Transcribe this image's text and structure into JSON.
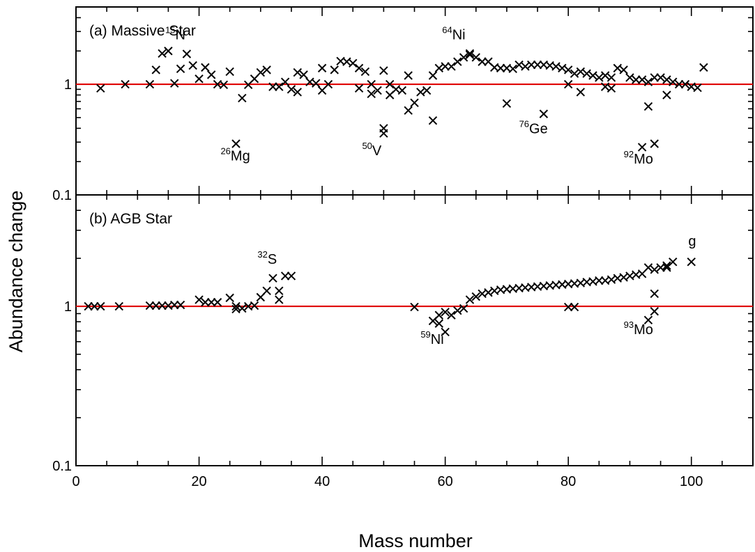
{
  "chart_data": {
    "type": "scatter",
    "xlabel": "Mass number",
    "ylabel": "Abundance change",
    "xlim": [
      0,
      110
    ],
    "x_ticks": [
      0,
      20,
      40,
      60,
      80,
      100
    ],
    "x_tick_labels": [
      "0",
      "20",
      "40",
      "60",
      "80",
      "100"
    ],
    "y_scale": "log",
    "reference_line": {
      "y": 1,
      "color": "#e00000"
    },
    "grid": false,
    "marker": "x",
    "panels": [
      {
        "title": "(a) Massive Star",
        "ylim": [
          0.1,
          5
        ],
        "y_tick_labels": [
          {
            "value": 0.1,
            "label": "0.1"
          },
          {
            "value": 1,
            "label": "1"
          }
        ],
        "points": [
          [
            4,
            0.92
          ],
          [
            8,
            1.0
          ],
          [
            12,
            1.0
          ],
          [
            13,
            1.35
          ],
          [
            14,
            1.9
          ],
          [
            15,
            2.0
          ],
          [
            16,
            1.02
          ],
          [
            17,
            1.38
          ],
          [
            18,
            1.88
          ],
          [
            19,
            1.48
          ],
          [
            20,
            1.12
          ],
          [
            21,
            1.42
          ],
          [
            22,
            1.22
          ],
          [
            23,
            1.0
          ],
          [
            24,
            0.99
          ],
          [
            25,
            1.3
          ],
          [
            26,
            0.29
          ],
          [
            27,
            0.75
          ],
          [
            28,
            0.99
          ],
          [
            29,
            1.12
          ],
          [
            30,
            1.28
          ],
          [
            31,
            1.35
          ],
          [
            32,
            0.95
          ],
          [
            33,
            0.95
          ],
          [
            34,
            1.05
          ],
          [
            35,
            0.9
          ],
          [
            36,
            0.85
          ],
          [
            36,
            1.28
          ],
          [
            37,
            1.22
          ],
          [
            38,
            1.05
          ],
          [
            39,
            1.02
          ],
          [
            40,
            0.88
          ],
          [
            40,
            1.4
          ],
          [
            41,
            1.0
          ],
          [
            42,
            1.35
          ],
          [
            43,
            1.62
          ],
          [
            44,
            1.6
          ],
          [
            45,
            1.55
          ],
          [
            46,
            0.92
          ],
          [
            46,
            1.4
          ],
          [
            47,
            1.3
          ],
          [
            48,
            1.0
          ],
          [
            48,
            0.82
          ],
          [
            49,
            0.88
          ],
          [
            50,
            1.33
          ],
          [
            50,
            0.4
          ],
          [
            50,
            0.36
          ],
          [
            51,
            1.0
          ],
          [
            51,
            0.8
          ],
          [
            52,
            0.9
          ],
          [
            53,
            0.88
          ],
          [
            54,
            1.2
          ],
          [
            54,
            0.58
          ],
          [
            55,
            0.68
          ],
          [
            56,
            0.85
          ],
          [
            57,
            0.88
          ],
          [
            58,
            0.47
          ],
          [
            58,
            1.2
          ],
          [
            59,
            1.4
          ],
          [
            60,
            1.45
          ],
          [
            61,
            1.45
          ],
          [
            62,
            1.6
          ],
          [
            63,
            1.75
          ],
          [
            64,
            1.85
          ],
          [
            64,
            1.9
          ],
          [
            65,
            1.75
          ],
          [
            66,
            1.6
          ],
          [
            67,
            1.6
          ],
          [
            68,
            1.42
          ],
          [
            69,
            1.4
          ],
          [
            70,
            1.4
          ],
          [
            70,
            0.67
          ],
          [
            71,
            1.38
          ],
          [
            72,
            1.5
          ],
          [
            73,
            1.45
          ],
          [
            74,
            1.5
          ],
          [
            75,
            1.5
          ],
          [
            76,
            1.5
          ],
          [
            76,
            0.54
          ],
          [
            77,
            1.48
          ],
          [
            78,
            1.45
          ],
          [
            79,
            1.4
          ],
          [
            80,
            1.35
          ],
          [
            80,
            1.0
          ],
          [
            81,
            1.25
          ],
          [
            82,
            1.3
          ],
          [
            82,
            0.85
          ],
          [
            83,
            1.25
          ],
          [
            84,
            1.2
          ],
          [
            85,
            1.15
          ],
          [
            86,
            1.2
          ],
          [
            86,
            0.95
          ],
          [
            87,
            1.15
          ],
          [
            87,
            0.92
          ],
          [
            88,
            1.4
          ],
          [
            89,
            1.35
          ],
          [
            90,
            1.15
          ],
          [
            91,
            1.1
          ],
          [
            92,
            1.1
          ],
          [
            92,
            0.27
          ],
          [
            93,
            1.05
          ],
          [
            93,
            0.63
          ],
          [
            94,
            1.15
          ],
          [
            94,
            0.29
          ],
          [
            95,
            1.15
          ],
          [
            96,
            1.1
          ],
          [
            96,
            0.8
          ],
          [
            97,
            1.05
          ],
          [
            98,
            1.0
          ],
          [
            99,
            1.0
          ],
          [
            100,
            0.95
          ],
          [
            101,
            0.93
          ],
          [
            102,
            1.42
          ]
        ],
        "annotations": [
          {
            "mass": "15",
            "element": "N",
            "x": 14.5,
            "y": 2.55
          },
          {
            "mass": "64",
            "element": "Ni",
            "x": 59.5,
            "y": 2.55
          },
          {
            "mass": "26",
            "element": "Mg",
            "x": 23.5,
            "y": 0.205
          },
          {
            "mass": "50",
            "element": "V",
            "x": 46.5,
            "y": 0.228
          },
          {
            "mass": "76",
            "element": "Ge",
            "x": 72.0,
            "y": 0.36
          },
          {
            "mass": "92",
            "element": "Mo",
            "x": 89.0,
            "y": 0.192
          }
        ]
      },
      {
        "title": "(b) AGB Star",
        "ylim": [
          0.1,
          5
        ],
        "y_tick_labels": [
          {
            "value": 0.1,
            "label": "0.1"
          },
          {
            "value": 1,
            "label": "1"
          }
        ],
        "points": [
          [
            2,
            1.0
          ],
          [
            3,
            1.0
          ],
          [
            4,
            1.0
          ],
          [
            7,
            1.0
          ],
          [
            12,
            1.01
          ],
          [
            13,
            1.01
          ],
          [
            14,
            1.01
          ],
          [
            15,
            1.01
          ],
          [
            16,
            1.02
          ],
          [
            17,
            1.02
          ],
          [
            20,
            1.1
          ],
          [
            21,
            1.06
          ],
          [
            22,
            1.06
          ],
          [
            23,
            1.06
          ],
          [
            25,
            1.13
          ],
          [
            26,
            1.0
          ],
          [
            26,
            0.96
          ],
          [
            27,
            0.97
          ],
          [
            28,
            1.0
          ],
          [
            29,
            1.01
          ],
          [
            30,
            1.14
          ],
          [
            31,
            1.25
          ],
          [
            32,
            1.5
          ],
          [
            33,
            1.25
          ],
          [
            33,
            1.1
          ],
          [
            34,
            1.55
          ],
          [
            35,
            1.55
          ],
          [
            55,
            0.99
          ],
          [
            58,
            0.81
          ],
          [
            59,
            0.78
          ],
          [
            59,
            0.88
          ],
          [
            60,
            0.92
          ],
          [
            60,
            0.69
          ],
          [
            61,
            0.88
          ],
          [
            62,
            0.94
          ],
          [
            63,
            0.97
          ],
          [
            64,
            1.1
          ],
          [
            65,
            1.15
          ],
          [
            66,
            1.2
          ],
          [
            67,
            1.22
          ],
          [
            68,
            1.25
          ],
          [
            69,
            1.27
          ],
          [
            70,
            1.28
          ],
          [
            71,
            1.29
          ],
          [
            72,
            1.3
          ],
          [
            73,
            1.31
          ],
          [
            74,
            1.32
          ],
          [
            75,
            1.33
          ],
          [
            76,
            1.34
          ],
          [
            77,
            1.35
          ],
          [
            78,
            1.36
          ],
          [
            79,
            1.37
          ],
          [
            80,
            1.38
          ],
          [
            80,
            0.99
          ],
          [
            81,
            1.39
          ],
          [
            81,
            0.99
          ],
          [
            82,
            1.4
          ],
          [
            83,
            1.42
          ],
          [
            84,
            1.43
          ],
          [
            85,
            1.45
          ],
          [
            86,
            1.45
          ],
          [
            87,
            1.47
          ],
          [
            88,
            1.5
          ],
          [
            89,
            1.52
          ],
          [
            90,
            1.55
          ],
          [
            91,
            1.58
          ],
          [
            92,
            1.6
          ],
          [
            93,
            1.75
          ],
          [
            93,
            0.82
          ],
          [
            94,
            1.7
          ],
          [
            94,
            1.2
          ],
          [
            94,
            0.93
          ],
          [
            95,
            1.75
          ],
          [
            96,
            1.75
          ],
          [
            96,
            1.8
          ],
          [
            97,
            1.9
          ],
          [
            100,
            1.9
          ]
        ],
        "annotations": [
          {
            "mass": "32",
            "element": "S",
            "x": 29.5,
            "y": 1.85
          },
          {
            "mass": "59",
            "element": "Ni",
            "x": 56.0,
            "y": 0.58
          },
          {
            "mass": "93",
            "element": "Mo",
            "x": 89.0,
            "y": 0.67
          },
          {
            "mass": "",
            "element": "g",
            "x": 99.5,
            "y": 2.4
          }
        ]
      }
    ]
  }
}
